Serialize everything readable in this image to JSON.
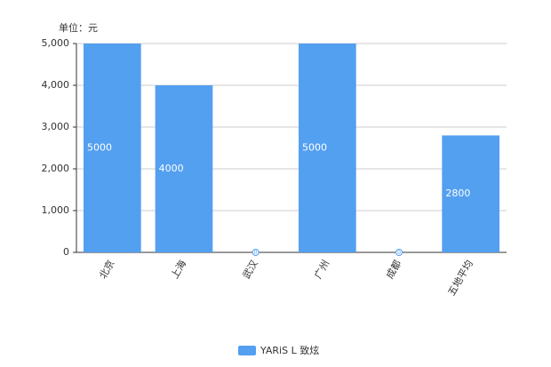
{
  "chart_data": {
    "type": "bar",
    "unit_label": "单位：元",
    "categories": [
      "北京",
      "上海",
      "武汉",
      "广州",
      "成都",
      "五地平均"
    ],
    "series": [
      {
        "name": "YARiS L 致炫",
        "color": "#539ff0",
        "values": [
          5000,
          4000,
          0,
          5000,
          0,
          2800
        ]
      }
    ],
    "ylim": [
      0,
      5000
    ],
    "yticks": [
      0,
      {
        "value": 1000,
        "label": "1,000"
      },
      {
        "value": 2000,
        "label": "2,000"
      },
      {
        "value": 3000,
        "label": "3,000"
      },
      {
        "value": 4000,
        "label": "4,000"
      },
      {
        "value": 5000,
        "label": "5,000"
      }
    ],
    "grid": true,
    "legend": "bottom"
  }
}
